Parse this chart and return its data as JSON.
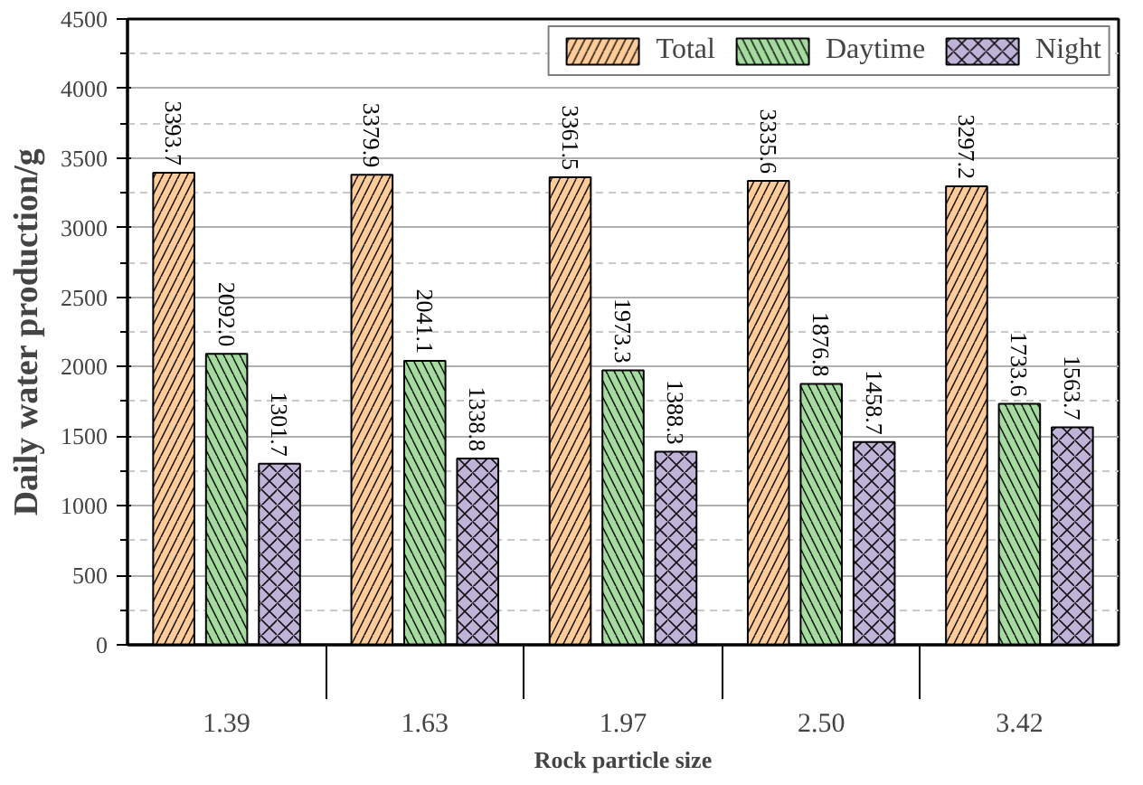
{
  "chart_data": {
    "type": "bar",
    "xlabel": "Rock particle size",
    "ylabel": "Daily water production/g",
    "categories": [
      "1.39",
      "1.63",
      "1.97",
      "2.50",
      "3.42"
    ],
    "series": [
      {
        "name": "Total",
        "color": "#fdcc99",
        "values": [
          3393.7,
          3379.9,
          3361.5,
          3335.6,
          3297.2
        ],
        "value_labels": [
          "3393.7",
          "3379.9",
          "3361.5",
          "3335.6",
          "3297.2"
        ]
      },
      {
        "name": "Daytime",
        "color": "#a6dba0",
        "values": [
          2092.0,
          2041.1,
          1973.3,
          1876.8,
          1733.6
        ],
        "value_labels": [
          "2092.0",
          "2041.1",
          "1973.3",
          "1876.8",
          "1733.6"
        ]
      },
      {
        "name": "Night",
        "color": "#bfb4d8",
        "values": [
          1301.7,
          1338.8,
          1388.3,
          1458.7,
          1563.7
        ],
        "value_labels": [
          "1301.7",
          "1338.8",
          "1388.3",
          "1458.7",
          "1563.7"
        ]
      }
    ],
    "ylim": [
      0,
      4500
    ],
    "yticks": [
      0,
      500,
      1000,
      1500,
      2000,
      2500,
      3000,
      3500,
      4000,
      4500
    ],
    "grid": "y",
    "legend": "top right"
  }
}
